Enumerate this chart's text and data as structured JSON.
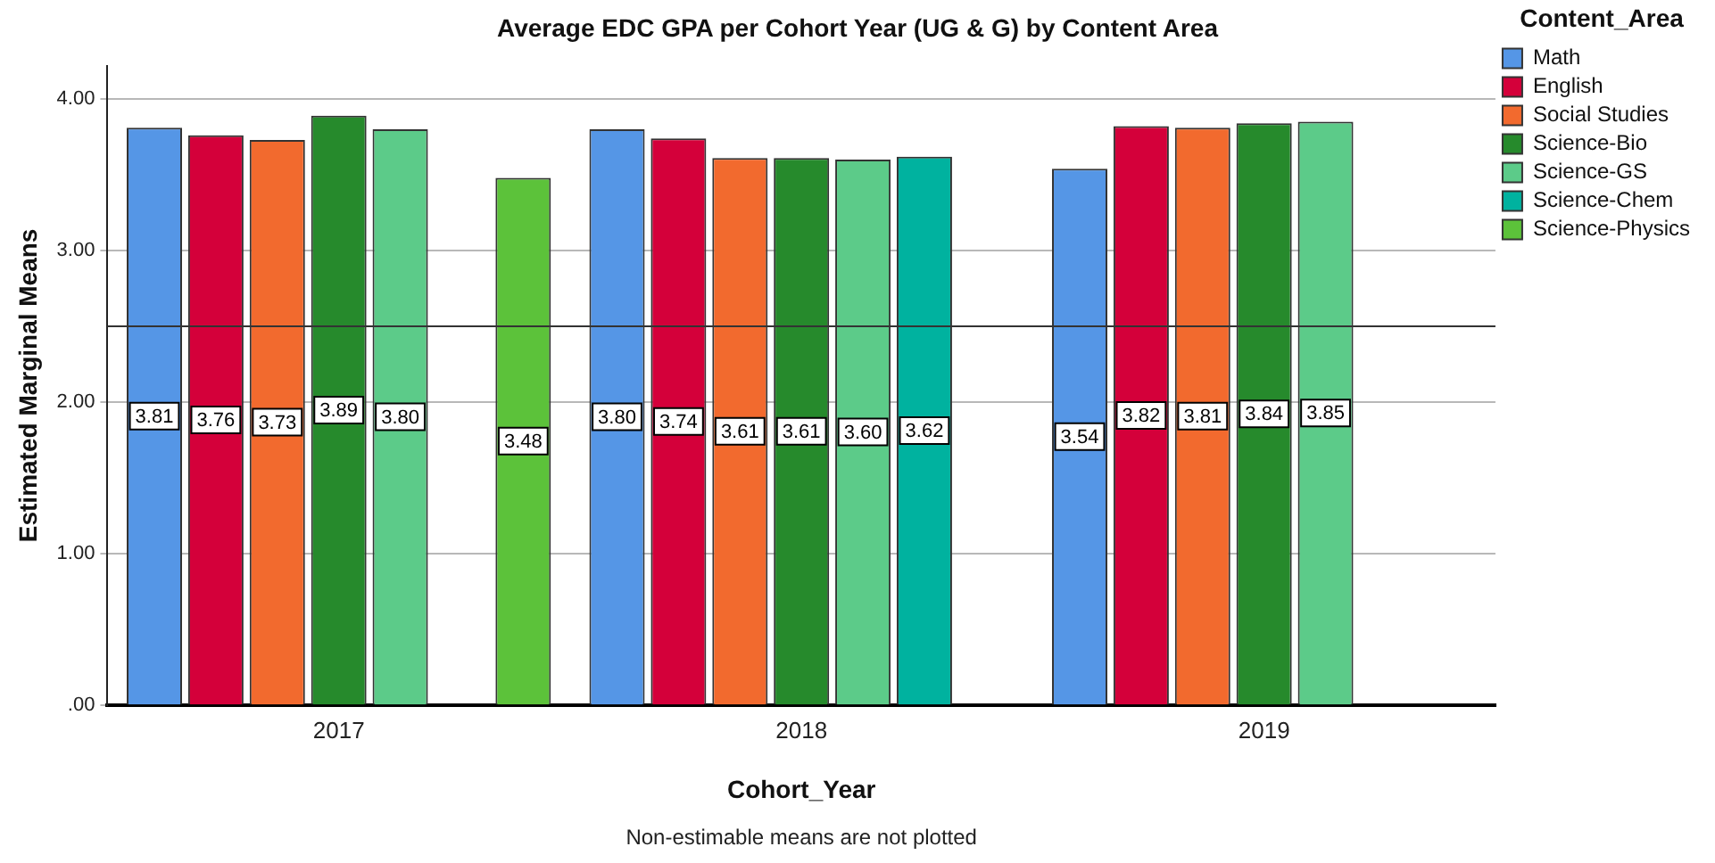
{
  "chart_data": {
    "type": "bar",
    "title": "Average EDC GPA per Cohort Year (UG & G) by Content Area",
    "xlabel": "Cohort_Year",
    "ylabel": "Estimated Marginal Means",
    "legend_title": "Content_Area",
    "legend": "right",
    "categories": [
      "2017",
      "2018",
      "2019"
    ],
    "series": [
      {
        "name": "Math",
        "color": "#5596e6",
        "values": [
          3.81,
          3.8,
          3.54
        ],
        "value_labels": [
          "3.81",
          "3.80",
          "3.54"
        ]
      },
      {
        "name": "English",
        "color": "#d4003a",
        "values": [
          3.76,
          3.74,
          3.82
        ],
        "value_labels": [
          "3.76",
          "3.74",
          "3.82"
        ]
      },
      {
        "name": "Social Studies",
        "color": "#f26a2e",
        "values": [
          3.73,
          3.61,
          3.81
        ],
        "value_labels": [
          "3.73",
          "3.61",
          "3.81"
        ]
      },
      {
        "name": "Science-Bio",
        "color": "#268a2c",
        "values": [
          3.89,
          3.61,
          3.84
        ],
        "value_labels": [
          "3.89",
          "3.61",
          "3.84"
        ]
      },
      {
        "name": "Science-GS",
        "color": "#5ccb89",
        "values": [
          3.8,
          3.6,
          3.85
        ],
        "value_labels": [
          "3.80",
          "3.60",
          "3.85"
        ]
      },
      {
        "name": "Science-Chem",
        "color": "#00b29f",
        "values": [
          null,
          3.62,
          null
        ],
        "value_labels": [
          null,
          "3.62",
          null
        ]
      },
      {
        "name": "Science-Physics",
        "color": "#5cc23a",
        "values": [
          3.48,
          null,
          null
        ],
        "value_labels": [
          "3.48",
          null,
          null
        ]
      }
    ],
    "ylim": [
      0,
      4.22
    ],
    "yticks": [
      {
        "value": 0,
        "label": ".00"
      },
      {
        "value": 1,
        "label": "1.00"
      },
      {
        "value": 2,
        "label": "2.00"
      },
      {
        "value": 3,
        "label": "3.00"
      },
      {
        "value": 4,
        "label": "4.00"
      }
    ],
    "grid": "y",
    "ref_lines": [
      {
        "axis": "y",
        "value": 2.5,
        "color": "#333333"
      }
    ],
    "annotations": [
      "Non-estimable means are not plotted"
    ]
  }
}
